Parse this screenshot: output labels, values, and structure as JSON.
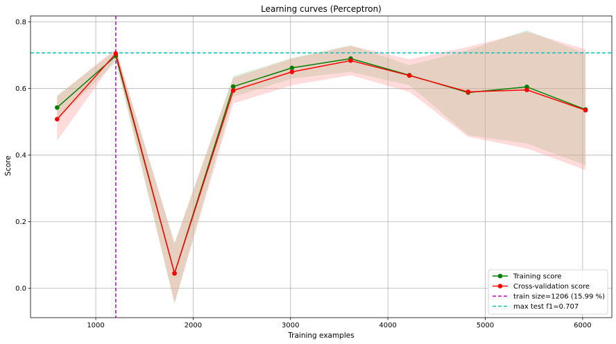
{
  "chart_data": {
    "type": "line",
    "title": "Learning curves (Perceptron)",
    "xlabel": "Training examples",
    "ylabel": "Score",
    "xlim": [
      330,
      6300
    ],
    "ylim": [
      -0.088,
      0.818
    ],
    "xticks": [
      1000,
      2000,
      3000,
      4000,
      5000,
      6000
    ],
    "xtick_labels": [
      "1000",
      "2000",
      "3000",
      "4000",
      "5000",
      "6000"
    ],
    "yticks": [
      0.0,
      0.2,
      0.4,
      0.6,
      0.8
    ],
    "ytick_labels": [
      "0.0",
      "0.2",
      "0.4",
      "0.6",
      "0.8"
    ],
    "grid": true,
    "legend_position": "bottom-right",
    "x": [
      603,
      1206,
      1809,
      2412,
      3015,
      3618,
      4221,
      4824,
      5427,
      6030
    ],
    "series": [
      {
        "name": "Training score",
        "color": "#008000",
        "band_color": "#8fd18f",
        "values": [
          0.543,
          0.698,
          0.045,
          0.606,
          0.662,
          0.69,
          0.64,
          0.588,
          0.605,
          0.537
        ],
        "lower": [
          0.505,
          0.68,
          -0.045,
          0.575,
          0.63,
          0.65,
          0.61,
          0.46,
          0.435,
          0.37
        ],
        "upper": [
          0.58,
          0.715,
          0.135,
          0.637,
          0.692,
          0.73,
          0.67,
          0.715,
          0.775,
          0.705
        ]
      },
      {
        "name": "Cross-validation score",
        "color": "#ff0000",
        "band_color": "#ff9999",
        "values": [
          0.508,
          0.705,
          0.045,
          0.594,
          0.65,
          0.684,
          0.639,
          0.59,
          0.596,
          0.535
        ],
        "lower": [
          0.443,
          0.69,
          -0.045,
          0.555,
          0.61,
          0.64,
          0.59,
          0.455,
          0.42,
          0.355
        ],
        "upper": [
          0.575,
          0.72,
          0.135,
          0.632,
          0.69,
          0.728,
          0.688,
          0.725,
          0.77,
          0.718
        ]
      }
    ],
    "reference_lines": [
      {
        "orientation": "vertical",
        "value": 1206,
        "color": "#bf00bf",
        "label": "train size=1206 (15.99 %)"
      },
      {
        "orientation": "horizontal",
        "value": 0.707,
        "color": "#00bfbf",
        "label": "max test f1=0.707"
      }
    ]
  }
}
